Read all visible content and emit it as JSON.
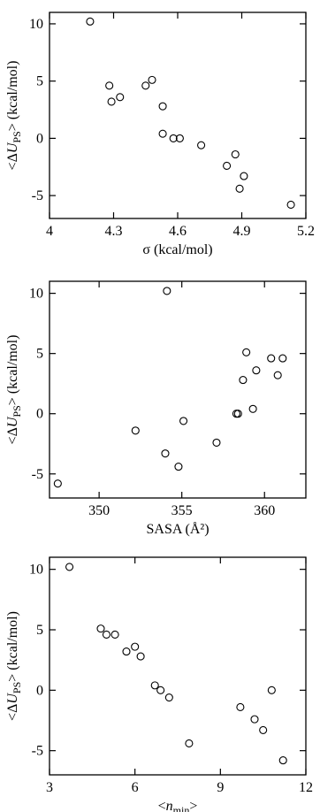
{
  "chart_data": [
    {
      "type": "scatter",
      "xlabel": "σ (kcal/mol)",
      "ylabel": "<ΔU_PS> (kcal/mol)",
      "xlim": [
        4.0,
        5.2
      ],
      "ylim": [
        -7,
        11
      ],
      "xticks": [
        4,
        4.3,
        4.6,
        4.9,
        5.2
      ],
      "xtick_labels": [
        "4",
        "4.3",
        "4.6",
        "4.9",
        "5.2"
      ],
      "yticks": [
        10,
        5,
        0,
        -5
      ],
      "ytick_labels": [
        "10",
        "5",
        "0",
        "-5"
      ],
      "marker": "open-circle",
      "points": [
        {
          "x": 4.19,
          "y": 10.2
        },
        {
          "x": 4.28,
          "y": 4.6
        },
        {
          "x": 4.29,
          "y": 3.2
        },
        {
          "x": 4.33,
          "y": 3.6
        },
        {
          "x": 4.45,
          "y": 4.6
        },
        {
          "x": 4.48,
          "y": 5.1
        },
        {
          "x": 4.53,
          "y": 2.8
        },
        {
          "x": 4.53,
          "y": 0.4
        },
        {
          "x": 4.58,
          "y": 0.0
        },
        {
          "x": 4.61,
          "y": 0.0
        },
        {
          "x": 4.71,
          "y": -0.6
        },
        {
          "x": 4.83,
          "y": -2.4
        },
        {
          "x": 4.87,
          "y": -1.4
        },
        {
          "x": 4.89,
          "y": -4.4
        },
        {
          "x": 4.91,
          "y": -3.3
        },
        {
          "x": 5.13,
          "y": -5.8
        }
      ]
    },
    {
      "type": "scatter",
      "xlabel": "SASA (Å²)",
      "ylabel": "<ΔU_PS> (kcal/mol)",
      "xlim": [
        347,
        362.5
      ],
      "ylim": [
        -7,
        11
      ],
      "xticks": [
        350,
        355,
        360
      ],
      "xtick_labels": [
        "350",
        "355",
        "360"
      ],
      "yticks": [
        10,
        5,
        0,
        -5
      ],
      "ytick_labels": [
        "10",
        "5",
        "0",
        "-5"
      ],
      "marker": "open-circle",
      "points": [
        {
          "x": 347.5,
          "y": -5.8
        },
        {
          "x": 352.2,
          "y": -1.4
        },
        {
          "x": 354.0,
          "y": -3.3
        },
        {
          "x": 354.1,
          "y": 10.2
        },
        {
          "x": 354.8,
          "y": -4.4
        },
        {
          "x": 355.1,
          "y": -0.6
        },
        {
          "x": 357.1,
          "y": -2.4
        },
        {
          "x": 358.3,
          "y": 0.0
        },
        {
          "x": 358.4,
          "y": 0.0
        },
        {
          "x": 358.7,
          "y": 2.8
        },
        {
          "x": 358.9,
          "y": 5.1
        },
        {
          "x": 359.3,
          "y": 0.4
        },
        {
          "x": 359.5,
          "y": 3.6
        },
        {
          "x": 360.4,
          "y": 4.6
        },
        {
          "x": 360.8,
          "y": 3.2
        },
        {
          "x": 361.1,
          "y": 4.6
        }
      ]
    },
    {
      "type": "scatter",
      "xlabel": "<n_min>",
      "ylabel": "<ΔU_PS> (kcal/mol)",
      "xlim": [
        3,
        12
      ],
      "ylim": [
        -7,
        11
      ],
      "xticks": [
        3,
        6,
        9,
        12
      ],
      "xtick_labels": [
        "3",
        "6",
        "9",
        "12"
      ],
      "yticks": [
        10,
        5,
        0,
        -5
      ],
      "ytick_labels": [
        "10",
        "5",
        "0",
        "-5"
      ],
      "marker": "open-circle",
      "points": [
        {
          "x": 3.7,
          "y": 10.2
        },
        {
          "x": 4.8,
          "y": 5.1
        },
        {
          "x": 5.0,
          "y": 4.6
        },
        {
          "x": 5.3,
          "y": 4.6
        },
        {
          "x": 5.7,
          "y": 3.2
        },
        {
          "x": 6.0,
          "y": 3.6
        },
        {
          "x": 6.2,
          "y": 2.8
        },
        {
          "x": 6.7,
          "y": 0.4
        },
        {
          "x": 6.9,
          "y": 0.0
        },
        {
          "x": 7.2,
          "y": -0.6
        },
        {
          "x": 7.9,
          "y": -4.4
        },
        {
          "x": 9.7,
          "y": -1.4
        },
        {
          "x": 10.2,
          "y": -2.4
        },
        {
          "x": 10.5,
          "y": -3.3
        },
        {
          "x": 10.8,
          "y": 0.0
        },
        {
          "x": 11.2,
          "y": -5.8
        }
      ]
    }
  ]
}
